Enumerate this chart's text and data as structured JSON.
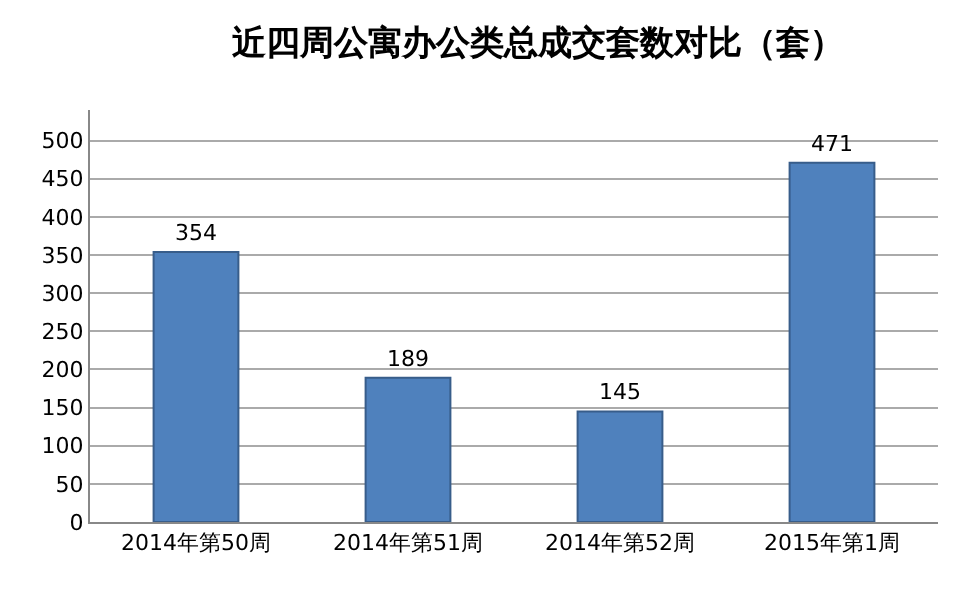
{
  "chart_data": {
    "type": "bar",
    "title": "近四周公寓办公类总成交套数对比（套）",
    "categories": [
      "2014年第50周",
      "2014年第51周",
      "2014年第52周",
      "2015年第1周"
    ],
    "values": [
      354,
      189,
      145,
      471
    ],
    "color": "#4f81bd",
    "ylim": [
      0,
      540
    ],
    "yticks": [
      0,
      50,
      100,
      150,
      200,
      250,
      300,
      350,
      400,
      450,
      500
    ],
    "grid": "y",
    "data_labels": true,
    "legend": false
  }
}
